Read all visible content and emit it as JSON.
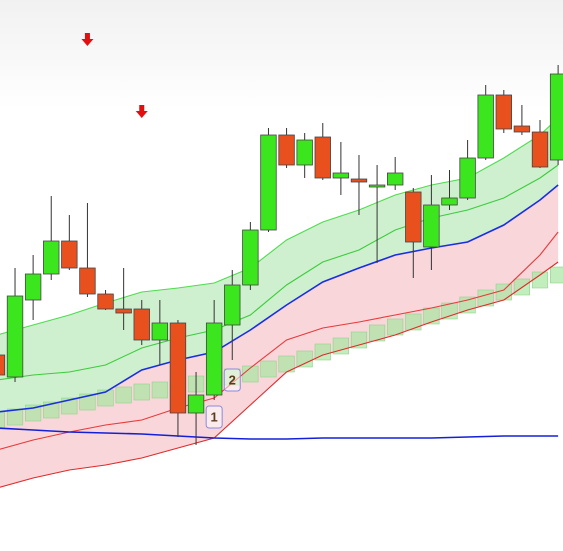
{
  "chart_data": {
    "type": "candlestick",
    "x": [
      0,
      1,
      2,
      3,
      4,
      5,
      6,
      7,
      8,
      9,
      10,
      11,
      12,
      13,
      14,
      15,
      16,
      17,
      18,
      19,
      20,
      21,
      22,
      23,
      24,
      25,
      26,
      27,
      28,
      29,
      30,
      31
    ],
    "open": [
      196,
      174,
      251,
      277,
      310,
      283,
      257,
      242,
      242,
      211,
      228,
      138,
      156,
      226,
      266,
      321,
      416,
      386,
      414,
      373,
      372,
      364,
      366,
      359,
      304,
      346,
      353,
      393,
      456,
      425,
      419,
      391
    ],
    "high": [
      211,
      283,
      296,
      355,
      336,
      348,
      261,
      283,
      251,
      251,
      231,
      179,
      251,
      281,
      329,
      423,
      423,
      418,
      428,
      409,
      396,
      386,
      394,
      363,
      376,
      381,
      411,
      466,
      461,
      446,
      431,
      486
    ],
    "low": [
      171,
      169,
      231,
      271,
      281,
      254,
      241,
      221,
      206,
      186,
      114,
      106,
      151,
      191,
      261,
      319,
      383,
      373,
      371,
      356,
      336,
      288,
      361,
      273,
      281,
      341,
      351,
      391,
      418,
      416,
      383,
      386
    ],
    "close": [
      176,
      255,
      277,
      310,
      283,
      257,
      242,
      238,
      211,
      228,
      138,
      156,
      228,
      266,
      321,
      416,
      386,
      411,
      373,
      378,
      369,
      366,
      378,
      309,
      346,
      353,
      393,
      456,
      422,
      419,
      384,
      477
    ],
    "up_color": "#3ce61e",
    "down_color": "#e8501e",
    "ylim": [
      0,
      551
    ],
    "xlim": [
      0.17,
      31.27
    ],
    "line_x": [
      0,
      2,
      4,
      6,
      8,
      10,
      12,
      14,
      16,
      18,
      20,
      22,
      24,
      26,
      28,
      30,
      31
    ],
    "lines": [
      {
        "color": "#4fdc4f",
        "values": [
          216,
          226,
          236,
          248,
          259,
          263,
          268,
          283,
          311,
          329,
          341,
          356,
          366,
          373,
          393,
          416,
          433
        ]
      },
      {
        "color": "#3ccc3c",
        "values": [
          171,
          176,
          179,
          186,
          203,
          213,
          221,
          236,
          266,
          289,
          301,
          321,
          333,
          341,
          353,
          373,
          386
        ]
      },
      {
        "color": "#1a2ee0",
        "values": [
          139,
          143,
          151,
          159,
          181,
          191,
          199,
          221,
          246,
          269,
          283,
          296,
          303,
          309,
          326,
          351,
          366
        ]
      },
      {
        "color": "#e83a3a",
        "values": [
          101,
          111,
          119,
          126,
          131,
          143,
          153,
          183,
          211,
          223,
          229,
          236,
          243,
          251,
          261,
          296,
          319
        ]
      },
      {
        "color": "#e02a2a",
        "values": [
          63,
          73,
          81,
          86,
          93,
          103,
          113,
          146,
          179,
          196,
          206,
          216,
          229,
          241,
          251,
          276,
          289
        ]
      },
      {
        "color": "#1420d8",
        "values": [
          123,
          121,
          119,
          118,
          117,
          115,
          113,
          112,
          112,
          113,
          113,
          113,
          113,
          114,
          115,
          115,
          115
        ]
      }
    ],
    "fills": [
      {
        "from": 0,
        "to": 2,
        "color": "#bdebbd"
      },
      {
        "from": 2,
        "to": 4,
        "color": "#f6c8ce"
      }
    ],
    "boxes": {
      "color": "#a8e6a0",
      "values": [
        131,
        134,
        138,
        141,
        145,
        149,
        153,
        156,
        159,
        161,
        163,
        167,
        171,
        174,
        177,
        182,
        187,
        192,
        199,
        205,
        211,
        218,
        224,
        229,
        235,
        240,
        246,
        253,
        259,
        264,
        271,
        276
      ]
    },
    "signals": {
      "color": "#e01010",
      "x": [
        5,
        8
      ],
      "values": [
        511,
        439
      ]
    },
    "markers": [
      {
        "text": "1",
        "x": 12,
        "y": 134
      },
      {
        "text": "2",
        "x": 13,
        "y": 171
      }
    ]
  }
}
